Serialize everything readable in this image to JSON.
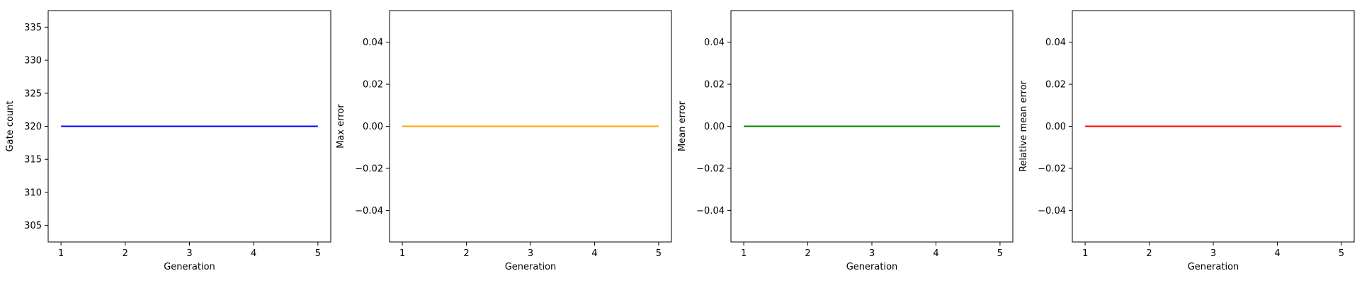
{
  "chart_data": [
    {
      "type": "line",
      "xlabel": "Generation",
      "ylabel": "Gate count",
      "xlim": [
        0.8,
        5.2
      ],
      "ylim": [
        302.5,
        337.5
      ],
      "xticks": [
        1,
        2,
        3,
        4,
        5
      ],
      "xtick_labels": [
        "1",
        "2",
        "3",
        "4",
        "5"
      ],
      "yticks": [
        305,
        310,
        315,
        320,
        325,
        330,
        335
      ],
      "ytick_labels": [
        "305",
        "310",
        "315",
        "320",
        "325",
        "330",
        "335"
      ],
      "grid": false,
      "color": "#0000ff",
      "series": [
        {
          "x": [
            1,
            2,
            3,
            4,
            5
          ],
          "y": [
            320,
            320,
            320,
            320,
            320
          ]
        }
      ]
    },
    {
      "type": "line",
      "xlabel": "Generation",
      "ylabel": "Max error",
      "xlim": [
        0.8,
        5.2
      ],
      "ylim": [
        -0.055,
        0.055
      ],
      "xticks": [
        1,
        2,
        3,
        4,
        5
      ],
      "xtick_labels": [
        "1",
        "2",
        "3",
        "4",
        "5"
      ],
      "yticks": [
        -0.04,
        -0.02,
        0.0,
        0.02,
        0.04
      ],
      "ytick_labels": [
        "−0.04",
        "−0.02",
        "0.00",
        "0.02",
        "0.04"
      ],
      "grid": false,
      "color": "#ffa500",
      "series": [
        {
          "x": [
            1,
            2,
            3,
            4,
            5
          ],
          "y": [
            0,
            0,
            0,
            0,
            0
          ]
        }
      ]
    },
    {
      "type": "line",
      "xlabel": "Generation",
      "ylabel": "Mean error",
      "xlim": [
        0.8,
        5.2
      ],
      "ylim": [
        -0.055,
        0.055
      ],
      "xticks": [
        1,
        2,
        3,
        4,
        5
      ],
      "xtick_labels": [
        "1",
        "2",
        "3",
        "4",
        "5"
      ],
      "yticks": [
        -0.04,
        -0.02,
        0.0,
        0.02,
        0.04
      ],
      "ytick_labels": [
        "−0.04",
        "−0.02",
        "0.00",
        "0.02",
        "0.04"
      ],
      "grid": false,
      "color": "#008000",
      "series": [
        {
          "x": [
            1,
            2,
            3,
            4,
            5
          ],
          "y": [
            0,
            0,
            0,
            0,
            0
          ]
        }
      ]
    },
    {
      "type": "line",
      "xlabel": "Generation",
      "ylabel": "Relative mean error",
      "xlim": [
        0.8,
        5.2
      ],
      "ylim": [
        -0.055,
        0.055
      ],
      "xticks": [
        1,
        2,
        3,
        4,
        5
      ],
      "xtick_labels": [
        "1",
        "2",
        "3",
        "4",
        "5"
      ],
      "yticks": [
        -0.04,
        -0.02,
        0.0,
        0.02,
        0.04
      ],
      "ytick_labels": [
        "−0.04",
        "−0.02",
        "0.00",
        "0.02",
        "0.04"
      ],
      "grid": false,
      "color": "#ff0000",
      "series": [
        {
          "x": [
            1,
            2,
            3,
            4,
            5
          ],
          "y": [
            0,
            0,
            0,
            0,
            0
          ]
        }
      ]
    }
  ]
}
